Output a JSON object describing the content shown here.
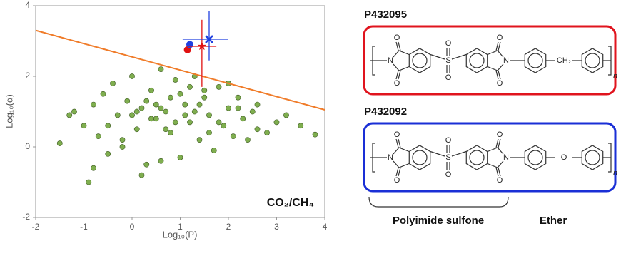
{
  "chart_data": {
    "type": "scatter",
    "xlabel": "Log₁₀(P)",
    "ylabel": "Log₁₀(α)",
    "annotation": "CO₂/CH₄",
    "xlim": [
      -2,
      4
    ],
    "ylim": [
      -2,
      4
    ],
    "xticks": [
      -2,
      -1,
      0,
      1,
      2,
      3,
      4
    ],
    "yticks": [
      -2,
      0,
      2,
      4
    ],
    "grid": false,
    "point_color": "#7fae4f",
    "x": [
      -1.5,
      -1.2,
      -1.0,
      -0.9,
      -0.8,
      -0.7,
      -0.6,
      -0.5,
      -0.4,
      -0.3,
      -0.2,
      -0.1,
      0.0,
      0.1,
      0.2,
      0.3,
      0.4,
      0.5,
      0.6,
      0.7,
      0.8,
      0.9,
      1.0,
      1.1,
      1.2,
      1.3,
      1.4,
      1.5,
      1.6,
      1.7,
      1.8,
      1.9,
      2.0,
      2.1,
      2.2,
      2.3,
      2.4,
      2.5,
      2.6,
      2.8,
      3.0,
      3.2,
      3.5,
      3.8,
      -0.5,
      0.0,
      0.3,
      0.6,
      1.0,
      1.3,
      -0.2,
      0.5,
      0.9,
      1.5,
      2.0,
      0.2,
      0.7,
      1.1,
      1.6,
      2.2,
      -0.8,
      0.4,
      0.8,
      1.2,
      1.8,
      2.6,
      -1.3,
      0.1,
      0.6,
      1.4
    ],
    "values": [
      0.1,
      1.0,
      0.6,
      -1.0,
      1.2,
      0.3,
      1.5,
      -0.2,
      1.8,
      0.9,
      0.0,
      1.3,
      2.0,
      0.5,
      1.1,
      -0.5,
      1.6,
      0.8,
      2.2,
      1.0,
      0.4,
      1.9,
      -0.3,
      1.2,
      0.7,
      2.0,
      0.2,
      1.4,
      0.9,
      -0.1,
      1.7,
      0.6,
      1.1,
      0.3,
      1.4,
      0.8,
      0.2,
      1.0,
      0.5,
      0.4,
      0.7,
      0.9,
      0.6,
      0.35,
      0.6,
      0.9,
      1.3,
      1.1,
      1.5,
      1.0,
      0.2,
      1.2,
      0.7,
      1.6,
      1.8,
      -0.8,
      0.5,
      0.9,
      0.4,
      1.1,
      -0.6,
      0.8,
      1.4,
      1.7,
      0.7,
      1.2,
      0.9,
      1.0,
      -0.4,
      1.2
    ],
    "upper_bound": {
      "color": "#f07c2a",
      "x": [
        -2,
        4
      ],
      "y": [
        3.3,
        1.05
      ]
    },
    "highlights": [
      {
        "marker": "circle",
        "color": "#e01010",
        "x": 1.15,
        "y": 2.75
      },
      {
        "marker": "circle",
        "color": "#2040e0",
        "x": 1.2,
        "y": 2.9
      },
      {
        "marker": "star",
        "color": "#e01010",
        "x": 1.45,
        "y": 2.85,
        "x_low": 1.15,
        "x_high": 1.75,
        "y_low": 1.7,
        "y_high": 3.6
      },
      {
        "marker": "cross",
        "color": "#2040e0",
        "x": 1.6,
        "y": 3.05,
        "x_low": 1.05,
        "x_high": 2.0,
        "y_low": 2.45,
        "y_high": 3.85
      }
    ]
  },
  "atoms": {
    "oxygen": "O",
    "sulfur": "S",
    "nitrogen": "N",
    "repeat": "n"
  },
  "structures": [
    {
      "id": "P432095",
      "color": "#e0141e",
      "linker": "CH₂"
    },
    {
      "id": "P432092",
      "color": "#1a2fd6",
      "linker": "O"
    }
  ],
  "groups": {
    "left": "Polyimide sulfone",
    "right": "Ether"
  }
}
